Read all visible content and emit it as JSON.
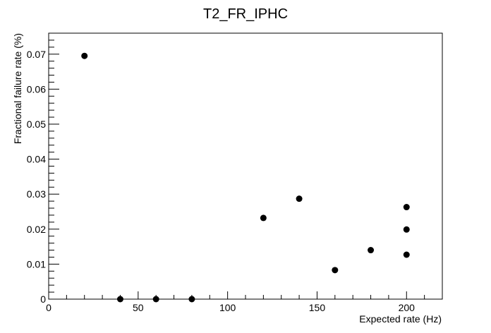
{
  "chart_data": {
    "type": "scatter",
    "title": "T2_FR_IPHC",
    "xlabel": "Expected rate (Hz)",
    "ylabel": "Fractional failure rate (%)",
    "xlim": [
      0,
      220
    ],
    "ylim": [
      0,
      0.076
    ],
    "x_ticks": [
      0,
      50,
      100,
      150,
      200
    ],
    "x_tick_labels": [
      "0",
      "50",
      "100",
      "150",
      "200"
    ],
    "y_ticks": [
      0,
      0.01,
      0.02,
      0.03,
      0.04,
      0.05,
      0.06,
      0.07
    ],
    "y_tick_labels": [
      "0",
      "0.01",
      "0.02",
      "0.03",
      "0.04",
      "0.05",
      "0.06",
      "0.07"
    ],
    "grid": false,
    "marker_color": "#000000",
    "points": [
      {
        "x": 20,
        "y": 0.0695
      },
      {
        "x": 40,
        "y": 0.0
      },
      {
        "x": 60,
        "y": 0.0
      },
      {
        "x": 80,
        "y": 0.0
      },
      {
        "x": 120,
        "y": 0.0232
      },
      {
        "x": 140,
        "y": 0.0287
      },
      {
        "x": 160,
        "y": 0.0083
      },
      {
        "x": 180,
        "y": 0.014
      },
      {
        "x": 200,
        "y": 0.0127
      },
      {
        "x": 200,
        "y": 0.0199
      },
      {
        "x": 200,
        "y": 0.0263
      }
    ]
  }
}
